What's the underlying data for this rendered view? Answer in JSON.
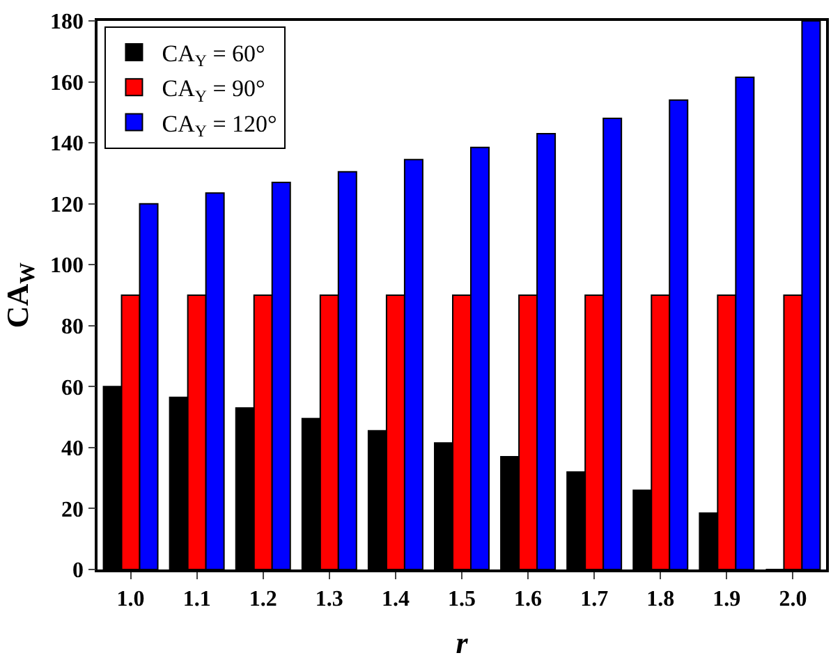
{
  "chart_data": {
    "type": "bar",
    "xlabel": "r",
    "ylabel": "CA$_{W}$",
    "categories": [
      "1.0",
      "1.1",
      "1.2",
      "1.3",
      "1.4",
      "1.5",
      "1.6",
      "1.7",
      "1.8",
      "1.9",
      "2.0"
    ],
    "series": [
      {
        "name": "CA$_{Y}$ = 60°",
        "color": "#000000",
        "values": [
          60,
          56.5,
          53,
          49.5,
          45.5,
          41.5,
          37,
          32,
          26,
          18.5,
          0
        ]
      },
      {
        "name": "CA$_{Y}$ = 90°",
        "color": "#ff0000",
        "values": [
          90,
          90,
          90,
          90,
          90,
          90,
          90,
          90,
          90,
          90,
          90
        ]
      },
      {
        "name": "CA$_{Y}$ = 120°",
        "color": "#0000ff",
        "values": [
          120,
          123.5,
          127,
          130.5,
          134.5,
          138.5,
          143,
          148,
          154,
          161.5,
          180
        ]
      }
    ],
    "ylim": [
      0,
      180
    ],
    "yticks": [
      0,
      20,
      40,
      60,
      80,
      100,
      120,
      140,
      160,
      180
    ],
    "grid": false,
    "legend": "top left"
  }
}
